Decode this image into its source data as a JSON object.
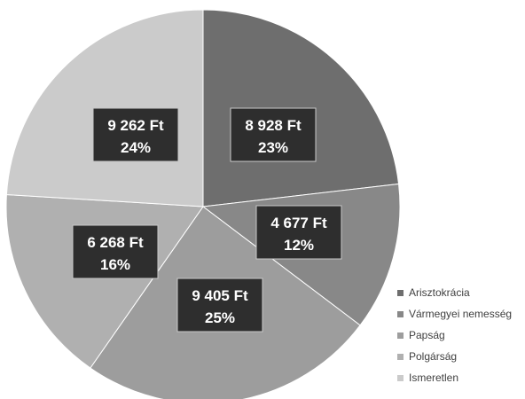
{
  "chart_data": {
    "type": "pie",
    "categories": [
      "Arisztokrácia",
      "Vármegyei nemesség",
      "Papság",
      "Polgárság",
      "Ismeretlen"
    ],
    "values": [
      8928,
      4677,
      9405,
      6268,
      9262
    ],
    "value_labels": [
      "8 928 Ft",
      "4 677 Ft",
      "9 405 Ft",
      "6 268 Ft",
      "9 262 Ft"
    ],
    "percent_labels": [
      "23%",
      "12%",
      "25%",
      "16%",
      "24%"
    ],
    "colors": [
      "#6e6e6e",
      "#888888",
      "#9d9d9d",
      "#b0b0b0",
      "#cbcbcb"
    ],
    "start_angle_deg": 0,
    "direction": "clockwise",
    "legend_position": "bottom-right"
  }
}
